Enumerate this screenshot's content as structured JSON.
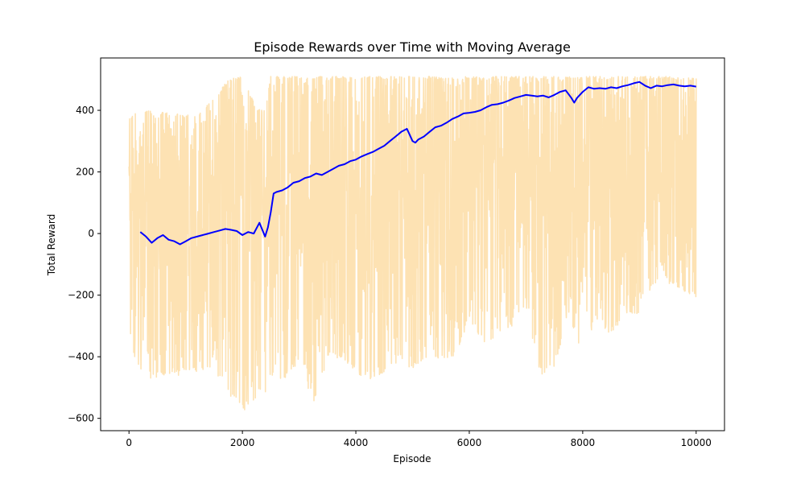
{
  "chart_data": {
    "type": "line",
    "title": "Episode Rewards over Time with Moving Average",
    "xlabel": "Episode",
    "ylabel": "Total Reward",
    "xlim": [
      -500,
      10500
    ],
    "ylim": [
      -640,
      570
    ],
    "xticks": [
      0,
      2000,
      4000,
      6000,
      8000,
      10000
    ],
    "xtick_labels": [
      "0",
      "2000",
      "4000",
      "6000",
      "8000",
      "10000"
    ],
    "yticks": [
      -600,
      -400,
      -200,
      0,
      200,
      400
    ],
    "ytick_labels": [
      "−600",
      "−400",
      "−200",
      "0",
      "200",
      "400"
    ],
    "grid": false,
    "legend": "none",
    "series": [
      {
        "role": "raw_rewards_envelope",
        "color": "#fde2b3",
        "x": [
          0,
          250,
          500,
          750,
          1000,
          1250,
          1500,
          1750,
          2000,
          2250,
          2400,
          2500,
          2750,
          3000,
          3250,
          3500,
          3750,
          4000,
          4250,
          4500,
          4750,
          5000,
          5250,
          5500,
          5750,
          6000,
          6250,
          6500,
          6750,
          7000,
          7250,
          7500,
          7750,
          8000,
          8250,
          8500,
          8750,
          9000,
          9250,
          9500,
          9750,
          10000
        ],
        "upper": [
          380,
          400,
          395,
          390,
          385,
          390,
          440,
          500,
          510,
          405,
          400,
          510,
          510,
          510,
          510,
          510,
          510,
          510,
          510,
          510,
          510,
          510,
          510,
          510,
          510,
          510,
          510,
          510,
          510,
          510,
          510,
          510,
          510,
          510,
          510,
          510,
          510,
          510,
          510,
          510,
          505,
          505
        ],
        "lower": [
          -370,
          -470,
          -470,
          -460,
          -460,
          -450,
          -440,
          -520,
          -580,
          -530,
          -520,
          -470,
          -470,
          -420,
          -550,
          -410,
          -400,
          -450,
          -480,
          -470,
          -410,
          -440,
          -420,
          -410,
          -400,
          -280,
          -360,
          -330,
          -300,
          -240,
          -460,
          -430,
          -270,
          -390,
          -280,
          -330,
          -260,
          -260,
          -160,
          -160,
          -180,
          -220
        ]
      },
      {
        "role": "moving_average",
        "color": "#0000ff",
        "x": [
          200,
          300,
          400,
          500,
          600,
          700,
          800,
          900,
          1000,
          1100,
          1200,
          1300,
          1400,
          1500,
          1600,
          1700,
          1800,
          1900,
          2000,
          2100,
          2200,
          2300,
          2400,
          2450,
          2500,
          2550,
          2600,
          2700,
          2800,
          2900,
          3000,
          3100,
          3200,
          3300,
          3400,
          3500,
          3600,
          3700,
          3800,
          3900,
          4000,
          4100,
          4200,
          4300,
          4400,
          4500,
          4600,
          4700,
          4800,
          4900,
          5000,
          5050,
          5100,
          5200,
          5300,
          5400,
          5500,
          5600,
          5700,
          5800,
          5900,
          6000,
          6100,
          6200,
          6300,
          6400,
          6500,
          6600,
          6700,
          6800,
          6900,
          7000,
          7100,
          7200,
          7300,
          7400,
          7500,
          7600,
          7700,
          7800,
          7850,
          7900,
          8000,
          8100,
          8200,
          8300,
          8400,
          8500,
          8600,
          8700,
          8800,
          8900,
          9000,
          9100,
          9200,
          9300,
          9400,
          9500,
          9600,
          9700,
          9800,
          9900,
          10000
        ],
        "y": [
          5,
          -10,
          -30,
          -15,
          -5,
          -20,
          -25,
          -35,
          -25,
          -15,
          -10,
          -5,
          0,
          5,
          10,
          15,
          12,
          8,
          -5,
          5,
          0,
          35,
          -10,
          20,
          70,
          130,
          135,
          140,
          150,
          165,
          170,
          180,
          185,
          195,
          190,
          200,
          210,
          220,
          225,
          235,
          240,
          250,
          258,
          265,
          275,
          285,
          300,
          315,
          330,
          340,
          300,
          295,
          305,
          315,
          330,
          345,
          350,
          360,
          372,
          380,
          390,
          392,
          395,
          400,
          410,
          418,
          420,
          425,
          432,
          440,
          445,
          450,
          448,
          445,
          448,
          442,
          450,
          460,
          465,
          440,
          425,
          440,
          460,
          475,
          470,
          472,
          470,
          475,
          472,
          478,
          482,
          488,
          492,
          480,
          472,
          480,
          478,
          482,
          484,
          480,
          478,
          480,
          477
        ]
      }
    ]
  }
}
